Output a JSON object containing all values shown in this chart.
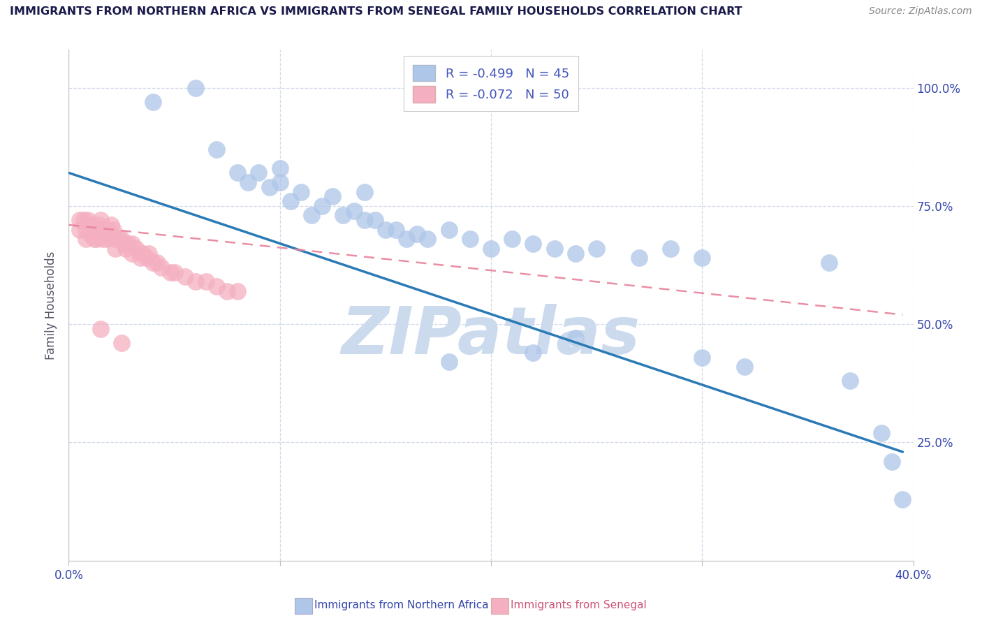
{
  "title": "IMMIGRANTS FROM NORTHERN AFRICA VS IMMIGRANTS FROM SENEGAL FAMILY HOUSEHOLDS CORRELATION CHART",
  "source": "Source: ZipAtlas.com",
  "ylabel": "Family Households",
  "xlabel_blue": "Immigrants from Northern Africa",
  "xlabel_pink": "Immigrants from Senegal",
  "watermark": "ZIPatlas",
  "legend_blue_R": "R = -0.499",
  "legend_blue_N": "N = 45",
  "legend_pink_R": "R = -0.072",
  "legend_pink_N": "N = 50",
  "xlim": [
    0.0,
    0.4
  ],
  "ylim": [
    0.0,
    1.08
  ],
  "yticks": [
    0.25,
    0.5,
    0.75,
    1.0
  ],
  "ytick_labels_right": [
    "25.0%",
    "50.0%",
    "75.0%",
    "100.0%"
  ],
  "xticks": [
    0.0,
    0.1,
    0.2,
    0.3,
    0.4
  ],
  "xtick_labels": [
    "0.0%",
    "",
    "",
    "",
    "40.0%"
  ],
  "blue_scatter_x": [
    0.04,
    0.06,
    0.07,
    0.08,
    0.085,
    0.09,
    0.095,
    0.1,
    0.1,
    0.105,
    0.11,
    0.115,
    0.12,
    0.125,
    0.13,
    0.135,
    0.14,
    0.14,
    0.145,
    0.15,
    0.155,
    0.16,
    0.165,
    0.17,
    0.18,
    0.19,
    0.2,
    0.21,
    0.22,
    0.23,
    0.24,
    0.25,
    0.27,
    0.285,
    0.3,
    0.36,
    0.18,
    0.22,
    0.24,
    0.3,
    0.32,
    0.37,
    0.385,
    0.39,
    0.395
  ],
  "blue_scatter_y": [
    0.97,
    1.0,
    0.87,
    0.82,
    0.8,
    0.82,
    0.79,
    0.83,
    0.8,
    0.76,
    0.78,
    0.73,
    0.75,
    0.77,
    0.73,
    0.74,
    0.72,
    0.78,
    0.72,
    0.7,
    0.7,
    0.68,
    0.69,
    0.68,
    0.7,
    0.68,
    0.66,
    0.68,
    0.67,
    0.66,
    0.65,
    0.66,
    0.64,
    0.66,
    0.64,
    0.63,
    0.42,
    0.44,
    0.47,
    0.43,
    0.41,
    0.38,
    0.27,
    0.21,
    0.13
  ],
  "pink_scatter_x": [
    0.005,
    0.005,
    0.007,
    0.008,
    0.008,
    0.009,
    0.01,
    0.01,
    0.011,
    0.012,
    0.013,
    0.013,
    0.014,
    0.015,
    0.015,
    0.016,
    0.017,
    0.018,
    0.018,
    0.019,
    0.02,
    0.02,
    0.021,
    0.022,
    0.022,
    0.024,
    0.025,
    0.026,
    0.027,
    0.028,
    0.03,
    0.03,
    0.032,
    0.034,
    0.035,
    0.037,
    0.038,
    0.04,
    0.042,
    0.044,
    0.048,
    0.05,
    0.055,
    0.06,
    0.065,
    0.07,
    0.075,
    0.08,
    0.015,
    0.025
  ],
  "pink_scatter_y": [
    0.72,
    0.7,
    0.72,
    0.7,
    0.68,
    0.72,
    0.71,
    0.69,
    0.7,
    0.68,
    0.7,
    0.68,
    0.71,
    0.72,
    0.7,
    0.68,
    0.69,
    0.7,
    0.68,
    0.69,
    0.71,
    0.69,
    0.7,
    0.68,
    0.66,
    0.68,
    0.68,
    0.67,
    0.66,
    0.67,
    0.67,
    0.65,
    0.66,
    0.64,
    0.65,
    0.64,
    0.65,
    0.63,
    0.63,
    0.62,
    0.61,
    0.61,
    0.6,
    0.59,
    0.59,
    0.58,
    0.57,
    0.57,
    0.49,
    0.46
  ],
  "blue_line_x": [
    0.0,
    0.395
  ],
  "blue_line_y": [
    0.82,
    0.23
  ],
  "pink_line_x": [
    0.0,
    0.395
  ],
  "pink_line_y": [
    0.71,
    0.52
  ],
  "blue_color": "#aec6e8",
  "pink_color": "#f4afc0",
  "blue_line_color": "#2a7ab5",
  "pink_line_color": "#e8829a",
  "title_color": "#1a1a4a",
  "watermark_color": "#ccdaee",
  "background_color": "#ffffff",
  "grid_color": "#d0d8e8",
  "label_color": "#4455bb",
  "axis_text_color": "#3344aa",
  "source_color": "#888888"
}
